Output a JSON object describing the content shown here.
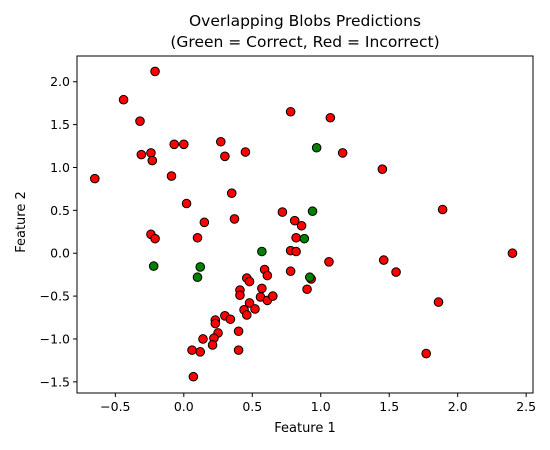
{
  "chart_data": {
    "type": "scatter",
    "title_line1": "Overlapping Blobs Predictions",
    "title_line2": "(Green = Correct, Red = Incorrect)",
    "xlabel": "Feature 1",
    "ylabel": "Feature 2",
    "xlim": [
      -0.78,
      2.55
    ],
    "ylim": [
      -1.63,
      2.3
    ],
    "xticks": [
      -0.5,
      0.0,
      0.5,
      1.0,
      1.5,
      2.0,
      2.5
    ],
    "xtick_labels": [
      "−0.5",
      "0.0",
      "0.5",
      "1.0",
      "1.5",
      "2.0",
      "2.5"
    ],
    "yticks": [
      -1.5,
      -1.0,
      -0.5,
      0.0,
      0.5,
      1.0,
      1.5,
      2.0
    ],
    "ytick_labels": [
      "−1.5",
      "−1.0",
      "−0.5",
      "0.0",
      "0.5",
      "1.0",
      "1.5",
      "2.0"
    ],
    "grid": false,
    "colors": {
      "correct": "#008000",
      "incorrect": "#ff0000",
      "edge": "#000000"
    },
    "series": [
      {
        "key": "incorrect",
        "points": [
          [
            -0.65,
            0.87
          ],
          [
            -0.44,
            1.79
          ],
          [
            -0.32,
            1.54
          ],
          [
            -0.31,
            1.15
          ],
          [
            -0.24,
            1.17
          ],
          [
            -0.23,
            1.08
          ],
          [
            -0.21,
            2.12
          ],
          [
            -0.24,
            0.22
          ],
          [
            -0.21,
            0.17
          ],
          [
            -0.09,
            0.9
          ],
          [
            -0.07,
            1.27
          ],
          [
            0.0,
            1.27
          ],
          [
            0.02,
            0.58
          ],
          [
            0.27,
            1.3
          ],
          [
            0.3,
            1.13
          ],
          [
            0.45,
            1.18
          ],
          [
            0.35,
            0.7
          ],
          [
            0.37,
            0.4
          ],
          [
            0.15,
            0.36
          ],
          [
            0.1,
            0.18
          ],
          [
            0.78,
            1.65
          ],
          [
            1.07,
            1.58
          ],
          [
            1.16,
            1.17
          ],
          [
            1.45,
            0.98
          ],
          [
            1.89,
            0.51
          ],
          [
            0.72,
            0.48
          ],
          [
            0.81,
            0.38
          ],
          [
            0.86,
            0.32
          ],
          [
            0.82,
            0.18
          ],
          [
            0.78,
            0.03
          ],
          [
            0.82,
            0.02
          ],
          [
            0.78,
            -0.21
          ],
          [
            0.59,
            -0.19
          ],
          [
            0.61,
            -0.26
          ],
          [
            0.46,
            -0.29
          ],
          [
            0.48,
            -0.33
          ],
          [
            0.41,
            -0.43
          ],
          [
            0.41,
            -0.49
          ],
          [
            0.57,
            -0.41
          ],
          [
            0.56,
            -0.51
          ],
          [
            0.61,
            -0.55
          ],
          [
            0.65,
            -0.5
          ],
          [
            0.48,
            -0.58
          ],
          [
            0.52,
            -0.65
          ],
          [
            0.44,
            -0.66
          ],
          [
            0.46,
            -0.72
          ],
          [
            0.3,
            -0.73
          ],
          [
            0.34,
            -0.77
          ],
          [
            0.23,
            -0.78
          ],
          [
            0.23,
            -0.82
          ],
          [
            0.4,
            -0.91
          ],
          [
            0.25,
            -0.93
          ],
          [
            0.22,
            -0.99
          ],
          [
            0.14,
            -1.0
          ],
          [
            0.21,
            -1.07
          ],
          [
            0.06,
            -1.13
          ],
          [
            0.12,
            -1.15
          ],
          [
            0.4,
            -1.13
          ],
          [
            0.07,
            -1.44
          ],
          [
            0.93,
            -0.3
          ],
          [
            0.9,
            -0.42
          ],
          [
            1.06,
            -0.1
          ],
          [
            1.46,
            -0.08
          ],
          [
            1.55,
            -0.22
          ],
          [
            1.86,
            -0.57
          ],
          [
            1.77,
            -1.17
          ],
          [
            2.4,
            0.0
          ]
        ]
      },
      {
        "key": "correct",
        "points": [
          [
            0.97,
            1.23
          ],
          [
            0.94,
            0.49
          ],
          [
            0.88,
            0.17
          ],
          [
            0.57,
            0.02
          ],
          [
            -0.22,
            -0.15
          ],
          [
            0.12,
            -0.16
          ],
          [
            0.1,
            -0.28
          ],
          [
            0.92,
            -0.28
          ]
        ]
      }
    ]
  }
}
